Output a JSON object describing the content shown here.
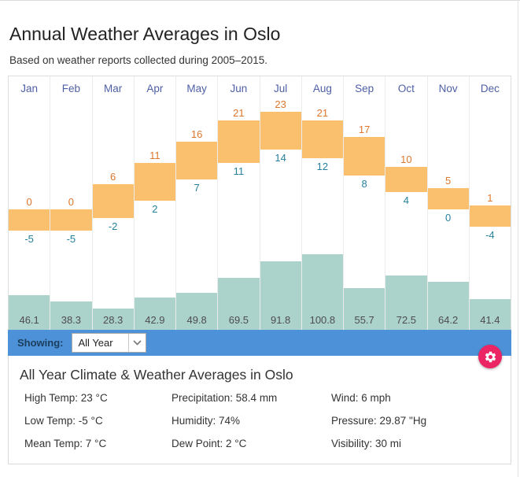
{
  "page": {
    "title": "Annual Weather Averages in Oslo",
    "subtitle": "Based on weather reports collected during 2005–2015."
  },
  "chart_data": {
    "type": "bar",
    "title": "Annual Weather Averages in Oslo",
    "categories": [
      "Jan",
      "Feb",
      "Mar",
      "Apr",
      "May",
      "Jun",
      "Jul",
      "Aug",
      "Sep",
      "Oct",
      "Nov",
      "Dec"
    ],
    "series": [
      {
        "name": "High Temp (°C)",
        "values": [
          0,
          0,
          6,
          11,
          16,
          21,
          23,
          21,
          17,
          10,
          5,
          1
        ]
      },
      {
        "name": "Low Temp (°C)",
        "values": [
          -5,
          -5,
          -2,
          2,
          7,
          11,
          14,
          12,
          8,
          4,
          0,
          -4
        ]
      },
      {
        "name": "Precipitation (mm)",
        "values": [
          46.1,
          38.3,
          28.3,
          42.9,
          49.8,
          69.5,
          91.8,
          100.8,
          55.7,
          72.5,
          64.2,
          41.4
        ]
      }
    ],
    "layout_hints": {
      "temp_axis_range": [
        -8,
        28
      ],
      "precip_axis_range": [
        0,
        105
      ],
      "grid": "vertical-column-separators",
      "legend": "none",
      "temp_bar_color": "#fbc06e",
      "precip_bar_color": "#acd2cc",
      "high_label_color": "#de752c",
      "low_label_color": "#26809c",
      "month_label_color": "#4e5fa6"
    }
  },
  "toolbar": {
    "showing_label": "Showing:",
    "period_value": "All Year",
    "chevron_icon": "chevron-down-icon",
    "gear_icon": "gear-icon",
    "bar_color": "#4d92d9",
    "gear_color": "#ec2564"
  },
  "summary": {
    "title": "All Year Climate & Weather Averages in Oslo",
    "columns": [
      [
        {
          "key": "high-temp",
          "label": "High Temp",
          "value": "23 °C"
        },
        {
          "key": "low-temp",
          "label": "Low Temp",
          "value": "-5 °C"
        },
        {
          "key": "mean-temp",
          "label": "Mean Temp",
          "value": "7 °C"
        }
      ],
      [
        {
          "key": "precipitation",
          "label": "Precipitation",
          "value": "58.4 mm"
        },
        {
          "key": "humidity",
          "label": "Humidity",
          "value": "74%"
        },
        {
          "key": "dew-point",
          "label": "Dew Point",
          "value": "2 °C"
        }
      ],
      [
        {
          "key": "wind",
          "label": "Wind",
          "value": "6 mph"
        },
        {
          "key": "pressure",
          "label": "Pressure",
          "value": "29.87 \"Hg"
        },
        {
          "key": "visibility",
          "label": "Visibility",
          "value": "30 mi"
        }
      ]
    ]
  }
}
